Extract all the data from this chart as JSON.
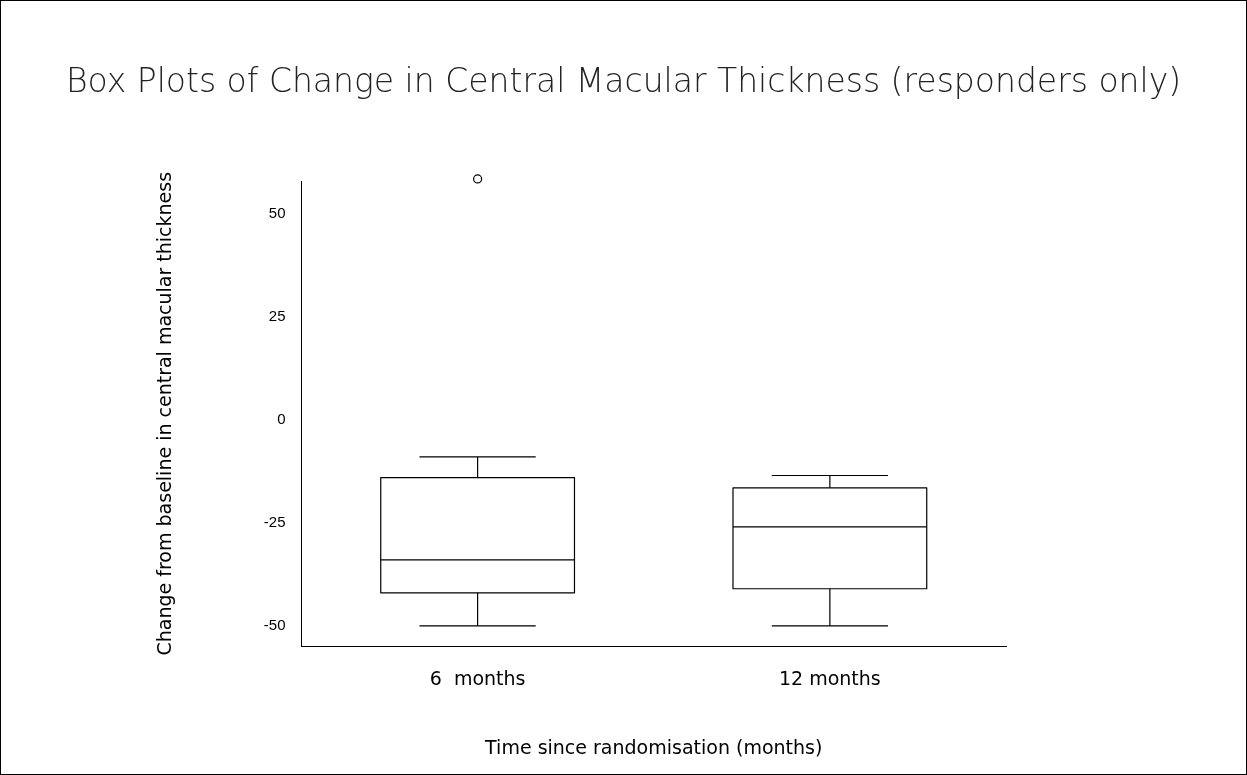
{
  "chart_data": {
    "type": "box",
    "title": "Box Plots of Change in Central Macular Thickness (responders only)",
    "xlabel": "Time since randomisation (months)",
    "ylabel": "Change from baseline in central macular thickness",
    "categories": [
      "6  months",
      "12 months"
    ],
    "boxes": [
      {
        "low": -50,
        "q1": -42,
        "median": -34,
        "q3": -14,
        "high": -9,
        "outliers": [
          58.5
        ]
      },
      {
        "low": -50,
        "q1": -41,
        "median": -26,
        "q3": -16.5,
        "high": -13.5
      }
    ],
    "ylim": [
      -55,
      58
    ],
    "yticks": [
      -50,
      -25,
      0,
      25,
      50
    ],
    "grid": false
  }
}
